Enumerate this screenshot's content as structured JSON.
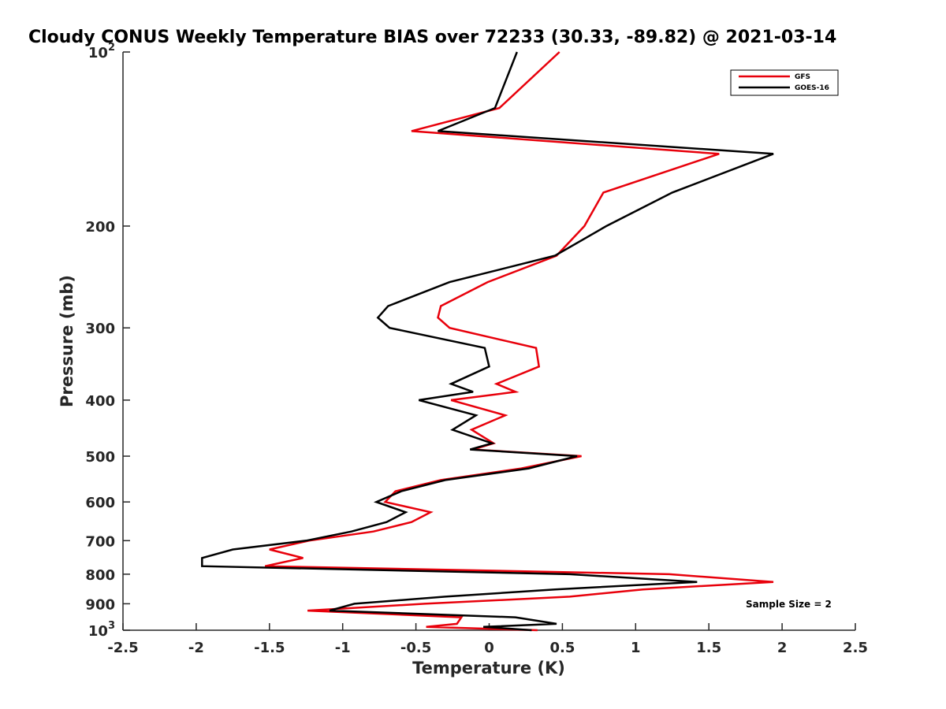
{
  "chart_data": {
    "type": "line",
    "title": "Cloudy CONUS Weekly Temperature BIAS over 72233 (30.33, -89.82) @ 2021-03-14",
    "xlabel": "Temperature (K)",
    "ylabel": "Pressure (mb)",
    "xlim": [
      -2.5,
      2.5
    ],
    "ylim": [
      100,
      1000
    ],
    "yscale": "log",
    "y_reversed": true,
    "grid": false,
    "x_ticks": [
      {
        "value": -2.5,
        "label": "-2.5"
      },
      {
        "value": -2,
        "label": "-2"
      },
      {
        "value": -1.5,
        "label": "-1.5"
      },
      {
        "value": -1,
        "label": "-1"
      },
      {
        "value": -0.5,
        "label": "-0.5"
      },
      {
        "value": 0,
        "label": "0"
      },
      {
        "value": 0.5,
        "label": "0.5"
      },
      {
        "value": 1,
        "label": "1"
      },
      {
        "value": 1.5,
        "label": "1.5"
      },
      {
        "value": 2,
        "label": "2"
      },
      {
        "value": 2.5,
        "label": "2.5"
      }
    ],
    "y_ticks": [
      {
        "value": 100,
        "base": "10",
        "exp": "2"
      },
      {
        "value": 200,
        "label": "200"
      },
      {
        "value": 300,
        "label": "300"
      },
      {
        "value": 400,
        "label": "400"
      },
      {
        "value": 500,
        "label": "500"
      },
      {
        "value": 600,
        "label": "600"
      },
      {
        "value": 700,
        "label": "700"
      },
      {
        "value": 800,
        "label": "800"
      },
      {
        "value": 900,
        "label": "900"
      },
      {
        "value": 1000,
        "base": "10",
        "exp": "3"
      }
    ],
    "legend_position": "top-right",
    "series": [
      {
        "name": "GFS",
        "color": "#e8000b",
        "points": [
          {
            "p": 100,
            "t": 0.48
          },
          {
            "p": 125,
            "t": 0.07
          },
          {
            "p": 137,
            "t": -0.53
          },
          {
            "p": 150,
            "t": 1.57
          },
          {
            "p": 175,
            "t": 0.78
          },
          {
            "p": 200,
            "t": 0.65
          },
          {
            "p": 225,
            "t": 0.46
          },
          {
            "p": 250,
            "t": -0.01
          },
          {
            "p": 275,
            "t": -0.33
          },
          {
            "p": 288,
            "t": -0.35
          },
          {
            "p": 300,
            "t": -0.27
          },
          {
            "p": 325,
            "t": 0.32
          },
          {
            "p": 350,
            "t": 0.34
          },
          {
            "p": 375,
            "t": 0.05
          },
          {
            "p": 387,
            "t": 0.18
          },
          {
            "p": 400,
            "t": -0.26
          },
          {
            "p": 425,
            "t": 0.11
          },
          {
            "p": 450,
            "t": -0.12
          },
          {
            "p": 475,
            "t": 0.03
          },
          {
            "p": 487,
            "t": -0.11
          },
          {
            "p": 500,
            "t": 0.63
          },
          {
            "p": 525,
            "t": 0.22
          },
          {
            "p": 550,
            "t": -0.33
          },
          {
            "p": 575,
            "t": -0.64
          },
          {
            "p": 600,
            "t": -0.71
          },
          {
            "p": 625,
            "t": -0.4
          },
          {
            "p": 650,
            "t": -0.53
          },
          {
            "p": 675,
            "t": -0.79
          },
          {
            "p": 700,
            "t": -1.23
          },
          {
            "p": 725,
            "t": -1.5
          },
          {
            "p": 750,
            "t": -1.27
          },
          {
            "p": 775,
            "t": -1.53
          },
          {
            "p": 800,
            "t": 1.23
          },
          {
            "p": 825,
            "t": 1.94
          },
          {
            "p": 850,
            "t": 1.05
          },
          {
            "p": 875,
            "t": 0.55
          },
          {
            "p": 900,
            "t": -0.44
          },
          {
            "p": 925,
            "t": -1.24
          },
          {
            "p": 950,
            "t": -0.19
          },
          {
            "p": 975,
            "t": -0.22
          },
          {
            "p": 987,
            "t": -0.43
          },
          {
            "p": 1000,
            "t": 0.33
          }
        ]
      },
      {
        "name": "GOES-16",
        "color": "#000000",
        "points": [
          {
            "p": 100,
            "t": 0.19
          },
          {
            "p": 125,
            "t": 0.04
          },
          {
            "p": 137,
            "t": -0.35
          },
          {
            "p": 150,
            "t": 1.94
          },
          {
            "p": 175,
            "t": 1.25
          },
          {
            "p": 200,
            "t": 0.8
          },
          {
            "p": 225,
            "t": 0.45
          },
          {
            "p": 250,
            "t": -0.27
          },
          {
            "p": 275,
            "t": -0.69
          },
          {
            "p": 288,
            "t": -0.76
          },
          {
            "p": 300,
            "t": -0.68
          },
          {
            "p": 325,
            "t": -0.03
          },
          {
            "p": 350,
            "t": 0.0
          },
          {
            "p": 375,
            "t": -0.26
          },
          {
            "p": 387,
            "t": -0.11
          },
          {
            "p": 400,
            "t": -0.48
          },
          {
            "p": 425,
            "t": -0.09
          },
          {
            "p": 450,
            "t": -0.25
          },
          {
            "p": 475,
            "t": 0.02
          },
          {
            "p": 487,
            "t": -0.13
          },
          {
            "p": 500,
            "t": 0.6
          },
          {
            "p": 525,
            "t": 0.27
          },
          {
            "p": 550,
            "t": -0.3
          },
          {
            "p": 575,
            "t": -0.6
          },
          {
            "p": 600,
            "t": -0.77
          },
          {
            "p": 625,
            "t": -0.57
          },
          {
            "p": 650,
            "t": -0.7
          },
          {
            "p": 675,
            "t": -0.94
          },
          {
            "p": 700,
            "t": -1.25
          },
          {
            "p": 725,
            "t": -1.75
          },
          {
            "p": 750,
            "t": -1.96
          },
          {
            "p": 775,
            "t": -1.96
          },
          {
            "p": 800,
            "t": 0.55
          },
          {
            "p": 825,
            "t": 1.42
          },
          {
            "p": 850,
            "t": 0.45
          },
          {
            "p": 875,
            "t": -0.3
          },
          {
            "p": 900,
            "t": -0.92
          },
          {
            "p": 925,
            "t": -1.09
          },
          {
            "p": 950,
            "t": 0.18
          },
          {
            "p": 975,
            "t": 0.46
          },
          {
            "p": 987,
            "t": -0.04
          },
          {
            "p": 1000,
            "t": 0.29
          }
        ]
      }
    ],
    "annotation": "Sample Size = 2"
  }
}
